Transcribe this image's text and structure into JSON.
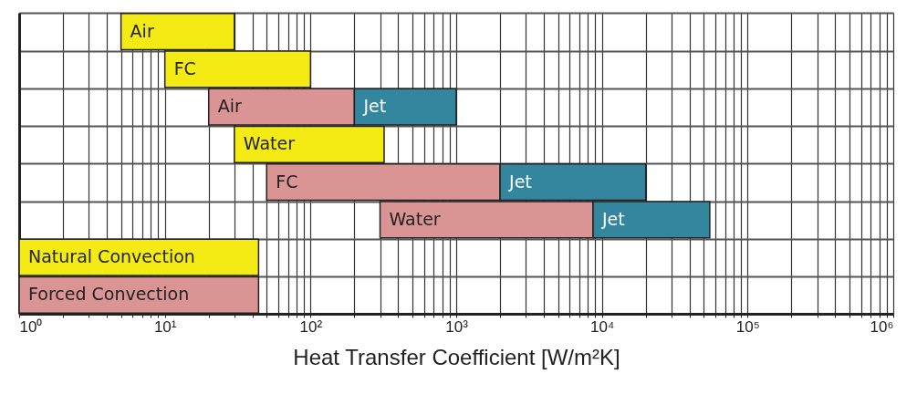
{
  "chart_data": {
    "type": "bar",
    "orientation": "horizontal",
    "xlabel": "Heat Transfer Coefficient [W/m²K]",
    "categories": [
      null,
      null,
      null,
      null,
      null,
      null,
      null,
      null
    ],
    "series": [
      {
        "color": "#f5eb14",
        "base": [
          5,
          10,
          null,
          30,
          null,
          null,
          1,
          null
        ],
        "values": [
          25,
          90,
          null,
          290,
          null,
          null,
          43,
          null
        ],
        "value_labels": [
          "Air",
          "FC",
          null,
          "Water",
          null,
          null,
          "Natural Convection",
          null
        ]
      },
      {
        "color": "#da9494",
        "base": [
          null,
          null,
          20,
          null,
          50,
          300,
          null,
          1
        ],
        "values": [
          null,
          null,
          180,
          null,
          1950,
          8400,
          null,
          43
        ],
        "value_labels": [
          null,
          null,
          "Air",
          null,
          "FC",
          "Water",
          null,
          "Forced Convection"
        ]
      },
      {
        "color": "#33869e",
        "base": [
          null,
          null,
          200,
          null,
          2000,
          8700,
          null,
          null
        ],
        "values": [
          null,
          null,
          800,
          null,
          18000,
          46300,
          null,
          null
        ],
        "value_labels": [
          null,
          null,
          "Jet",
          null,
          "Jet",
          "Jet",
          null,
          null
        ]
      }
    ],
    "log": "x",
    "xlim": [
      1,
      1000000
    ],
    "xticks": [
      {
        "value": 1,
        "label": "10⁰"
      },
      {
        "value": 2,
        "label": null
      },
      {
        "value": 3,
        "label": null
      },
      {
        "value": 4,
        "label": null
      },
      {
        "value": 5,
        "label": null
      },
      {
        "value": 6,
        "label": null
      },
      {
        "value": 7,
        "label": null
      },
      {
        "value": 8,
        "label": null
      },
      {
        "value": 9,
        "label": null
      },
      {
        "value": 10,
        "label": "10¹"
      },
      {
        "value": 20,
        "label": null
      },
      {
        "value": 30,
        "label": null
      },
      {
        "value": 40,
        "label": null
      },
      {
        "value": 50,
        "label": null
      },
      {
        "value": 60,
        "label": null
      },
      {
        "value": 70,
        "label": null
      },
      {
        "value": 80,
        "label": null
      },
      {
        "value": 90,
        "label": null
      },
      {
        "value": 100,
        "label": "10²"
      },
      {
        "value": 200,
        "label": null
      },
      {
        "value": 300,
        "label": null
      },
      {
        "value": 400,
        "label": null
      },
      {
        "value": 500,
        "label": null
      },
      {
        "value": 600,
        "label": null
      },
      {
        "value": 700,
        "label": null
      },
      {
        "value": 800,
        "label": null
      },
      {
        "value": 900,
        "label": null
      },
      {
        "value": 1000,
        "label": "10³"
      },
      {
        "value": 2000,
        "label": null
      },
      {
        "value": 3000,
        "label": null
      },
      {
        "value": 4000,
        "label": null
      },
      {
        "value": 5000,
        "label": null
      },
      {
        "value": 6000,
        "label": null
      },
      {
        "value": 7000,
        "label": null
      },
      {
        "value": 8000,
        "label": null
      },
      {
        "value": 9000,
        "label": null
      },
      {
        "value": 10000,
        "label": "10⁴"
      },
      {
        "value": 20000,
        "label": null
      },
      {
        "value": 30000,
        "label": null
      },
      {
        "value": 40000,
        "label": null
      },
      {
        "value": 50000,
        "label": null
      },
      {
        "value": 60000,
        "label": null
      },
      {
        "value": 70000,
        "label": null
      },
      {
        "value": 80000,
        "label": null
      },
      {
        "value": 90000,
        "label": null
      },
      {
        "value": 100000,
        "label": "10⁵"
      },
      {
        "value": 200000,
        "label": null
      },
      {
        "value": 300000,
        "label": null
      },
      {
        "value": 400000,
        "label": null
      },
      {
        "value": 500000,
        "label": null
      },
      {
        "value": 600000,
        "label": null
      },
      {
        "value": 700000,
        "label": null
      },
      {
        "value": 800000,
        "label": null
      },
      {
        "value": 900000,
        "label": null
      },
      {
        "value": 1000000,
        "label": "10⁶"
      }
    ],
    "grid": true,
    "legend": false,
    "tick_labels": "x"
  }
}
